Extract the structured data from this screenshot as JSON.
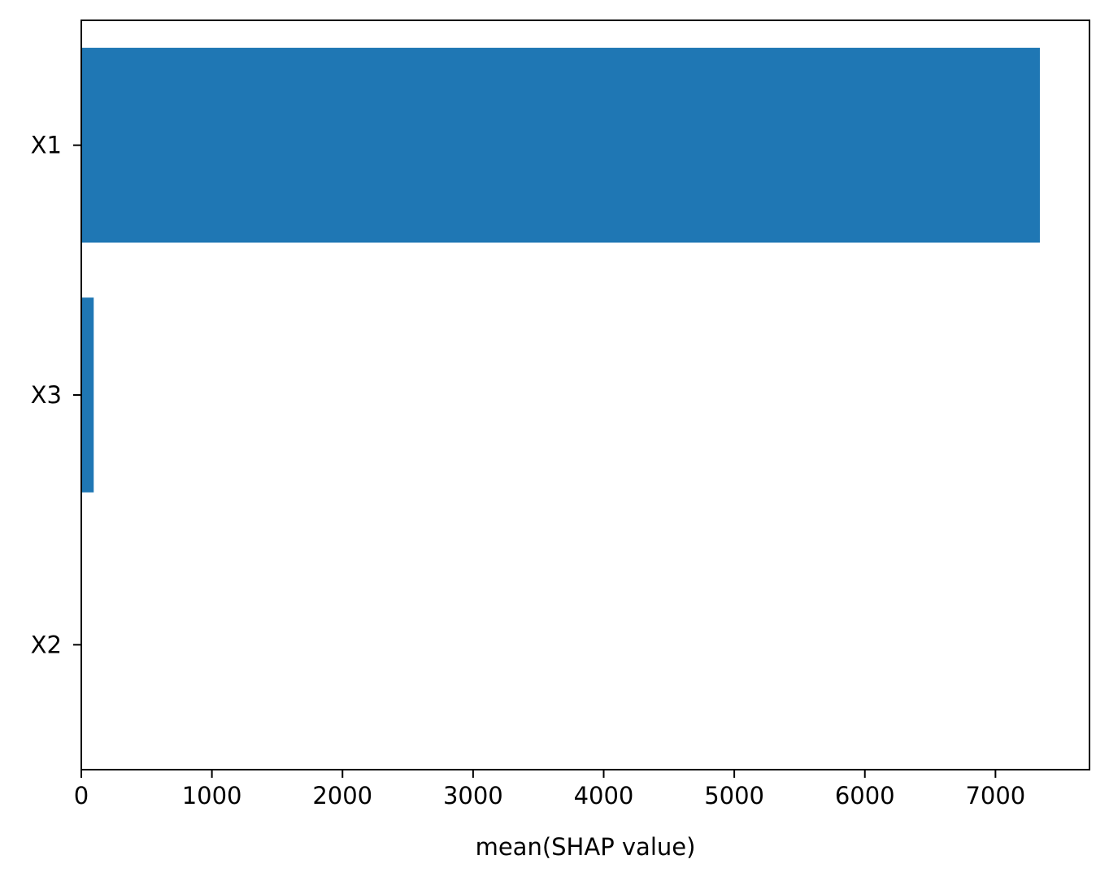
{
  "chart_data": {
    "type": "bar",
    "orientation": "horizontal",
    "categories": [
      "X1",
      "X3",
      "X2"
    ],
    "values": [
      7340,
      95,
      0
    ],
    "xlabel": "mean(SHAP value)",
    "ylabel": "",
    "title": "",
    "xlim": [
      0,
      7720
    ],
    "xticks": [
      0,
      1000,
      2000,
      3000,
      4000,
      5000,
      6000,
      7000
    ],
    "grid": false,
    "legend": "none",
    "bar_color": "#1f77b4"
  }
}
